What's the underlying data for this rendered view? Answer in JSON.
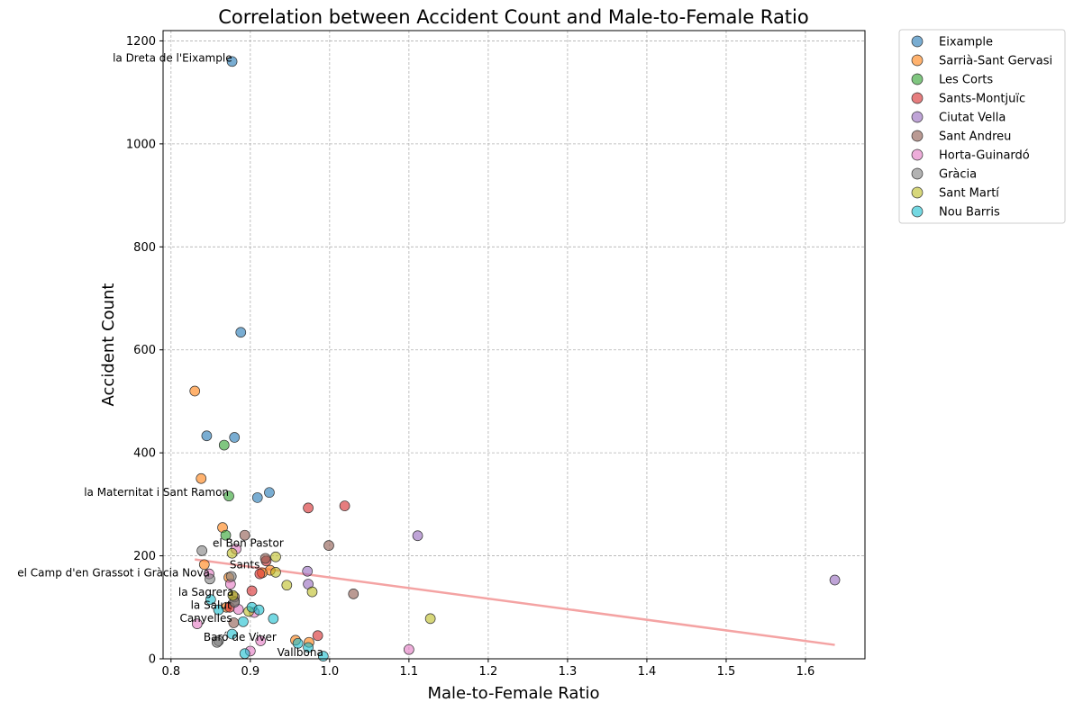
{
  "chart_data": {
    "type": "scatter",
    "title": "Correlation between Accident Count and Male-to-Female Ratio",
    "xlabel": "Male-to-Female Ratio",
    "ylabel": "Accident Count",
    "xlim": [
      0.79,
      1.675
    ],
    "ylim": [
      0,
      1220
    ],
    "xticks": [
      "0.8",
      "0.9",
      "1.0",
      "1.1",
      "1.2",
      "1.3",
      "1.4",
      "1.5",
      "1.6"
    ],
    "xtick_values": [
      0.8,
      0.9,
      1.0,
      1.1,
      1.2,
      1.3,
      1.4,
      1.5,
      1.6
    ],
    "yticks": [
      "0",
      "200",
      "400",
      "600",
      "800",
      "1000",
      "1200"
    ],
    "ytick_values": [
      0,
      200,
      400,
      600,
      800,
      1000,
      1200
    ],
    "grid": true,
    "legend_placement": "outside-top-right",
    "trend_line": {
      "x": [
        0.83,
        1.637
      ],
      "y": [
        193,
        27
      ],
      "color": "#f4a3a3"
    },
    "series": [
      {
        "name": "Eixample",
        "color": "#1f77b4",
        "points": [
          [
            0.877,
            1160
          ],
          [
            0.888,
            634
          ],
          [
            0.845,
            433
          ],
          [
            0.88,
            430
          ],
          [
            0.924,
            323
          ],
          [
            0.909,
            313
          ]
        ]
      },
      {
        "name": "Sarrià-Sant Gervasi",
        "color": "#ff7f0e",
        "points": [
          [
            0.83,
            520
          ],
          [
            0.838,
            350
          ],
          [
            0.865,
            255
          ],
          [
            0.842,
            183
          ],
          [
            0.873,
            158
          ],
          [
            0.925,
            172
          ],
          [
            0.915,
            167
          ],
          [
            0.974,
            32
          ],
          [
            0.957,
            36
          ],
          [
            0.87,
            100
          ]
        ]
      },
      {
        "name": "Les Corts",
        "color": "#2ca02c",
        "points": [
          [
            0.867,
            415
          ],
          [
            0.873,
            316
          ],
          [
            0.869,
            240
          ]
        ]
      },
      {
        "name": "Sants-Montjuïc",
        "color": "#d62728",
        "points": [
          [
            0.973,
            293
          ],
          [
            1.019,
            297
          ],
          [
            0.92,
            190
          ],
          [
            0.912,
            165
          ],
          [
            0.902,
            132
          ],
          [
            0.985,
            45
          ],
          [
            0.874,
            100
          ]
        ]
      },
      {
        "name": "Ciutat Vella",
        "color": "#9467bd",
        "points": [
          [
            1.111,
            239
          ],
          [
            1.637,
            153
          ],
          [
            0.972,
            170
          ],
          [
            0.973,
            145
          ]
        ]
      },
      {
        "name": "Sant Andreu",
        "color": "#8c564b",
        "points": [
          [
            0.893,
            240
          ],
          [
            0.999,
            220
          ],
          [
            0.919,
            195
          ],
          [
            1.03,
            126
          ],
          [
            0.88,
            112
          ],
          [
            0.88,
            120
          ],
          [
            0.879,
            70
          ]
        ]
      },
      {
        "name": "Horta-Guinardó",
        "color": "#e377c2",
        "points": [
          [
            0.882,
            213
          ],
          [
            0.848,
            165
          ],
          [
            0.875,
            145
          ],
          [
            0.9,
            15
          ],
          [
            0.833,
            68
          ],
          [
            0.885,
            96
          ],
          [
            1.1,
            18
          ],
          [
            0.905,
            90
          ],
          [
            0.913,
            35
          ]
        ]
      },
      {
        "name": "Gràcia",
        "color": "#7f7f7f",
        "points": [
          [
            0.839,
            210
          ],
          [
            0.849,
            155
          ],
          [
            0.876,
            160
          ],
          [
            0.88,
            110
          ],
          [
            0.86,
            35
          ],
          [
            0.858,
            32
          ]
        ]
      },
      {
        "name": "Sant Martí",
        "color": "#bcbd22",
        "points": [
          [
            0.932,
            198
          ],
          [
            0.877,
            205
          ],
          [
            0.932,
            168
          ],
          [
            0.946,
            143
          ],
          [
            0.978,
            130
          ],
          [
            0.878,
            123
          ],
          [
            1.127,
            78
          ],
          [
            0.898,
            92
          ]
        ]
      },
      {
        "name": "Nou Barris",
        "color": "#17becf",
        "points": [
          [
            0.85,
            115
          ],
          [
            0.86,
            95
          ],
          [
            0.891,
            72
          ],
          [
            0.902,
            100
          ],
          [
            0.911,
            95
          ],
          [
            0.929,
            78
          ],
          [
            0.877,
            48
          ],
          [
            0.96,
            30
          ],
          [
            0.973,
            22
          ],
          [
            0.992,
            5
          ],
          [
            0.893,
            10
          ]
        ]
      }
    ],
    "annotations": [
      {
        "text": "la Dreta de l'Eixample",
        "x": 0.877,
        "y": 1160
      },
      {
        "text": "la Maternitat i Sant Ramon",
        "x": 0.873,
        "y": 316
      },
      {
        "text": "el Bon Pastor",
        "x": 0.942,
        "y": 218
      },
      {
        "text": "el Camp d'en Grassot i Gràcia Nova",
        "x": 0.849,
        "y": 160
      },
      {
        "text": "Sants",
        "x": 0.912,
        "y": 176
      },
      {
        "text": "la Sagrera",
        "x": 0.879,
        "y": 122
      },
      {
        "text": "la Salut",
        "x": 0.876,
        "y": 97
      },
      {
        "text": "Canyelles",
        "x": 0.877,
        "y": 72
      },
      {
        "text": "Baró de Viver",
        "x": 0.933,
        "y": 35
      },
      {
        "text": "Vallbona",
        "x": 0.992,
        "y": 5
      }
    ]
  }
}
